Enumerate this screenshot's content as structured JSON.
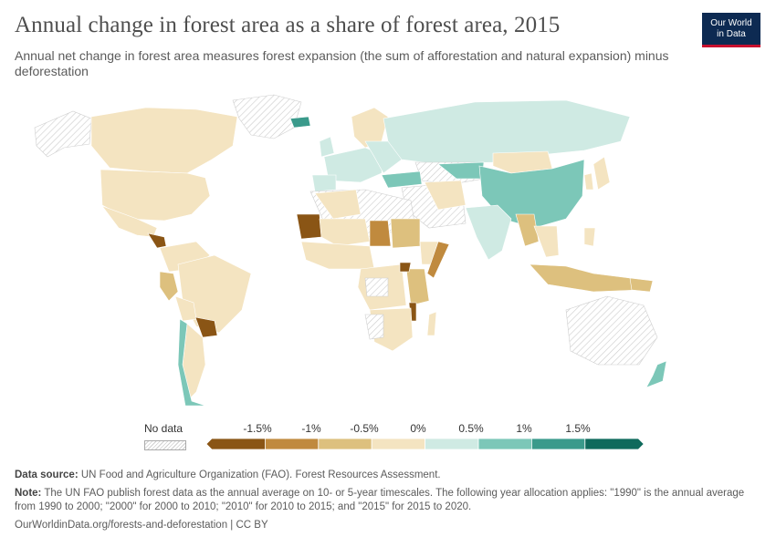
{
  "header": {
    "title": "Annual change in forest area as a share of forest area, 2015",
    "subtitle": "Annual net change in forest area measures forest expansion (the sum of afforestation and natural expansion) minus deforestation"
  },
  "logo": {
    "line1": "Our World",
    "line2": "in Data"
  },
  "legend": {
    "no_data_label": "No data",
    "ticks": [
      "-1.5%",
      "-1%",
      "-0.5%",
      "0%",
      "0.5%",
      "1%",
      "1.5%"
    ],
    "bins": [
      {
        "color": "#8a5515"
      },
      {
        "color": "#c08a3e"
      },
      {
        "color": "#ddc07e"
      },
      {
        "color": "#f4e4c1"
      },
      {
        "color": "#cfeae3"
      },
      {
        "color": "#7cc7b8"
      },
      {
        "color": "#3a9a8b"
      },
      {
        "color": "#0f6a5c"
      }
    ]
  },
  "footer": {
    "source_label": "Data source:",
    "source_text": "UN Food and Agriculture Organization (FAO). Forest Resources Assessment.",
    "note_label": "Note:",
    "note_text": "The UN FAO publish forest data as the annual average on 10- or 5-year timescales. The following year allocation applies: \"1990\" is the annual average from 1990 to 2000; \"2000\" for 2000 to 2010; \"2010\" for 2010 to 2015; and \"2015\" for 2015 to 2020.",
    "url": "OurWorldinData.org/forests-and-deforestation | CC BY"
  },
  "colors": {
    "no_data": "#e9e9e9",
    "border": "#ffffff"
  }
}
